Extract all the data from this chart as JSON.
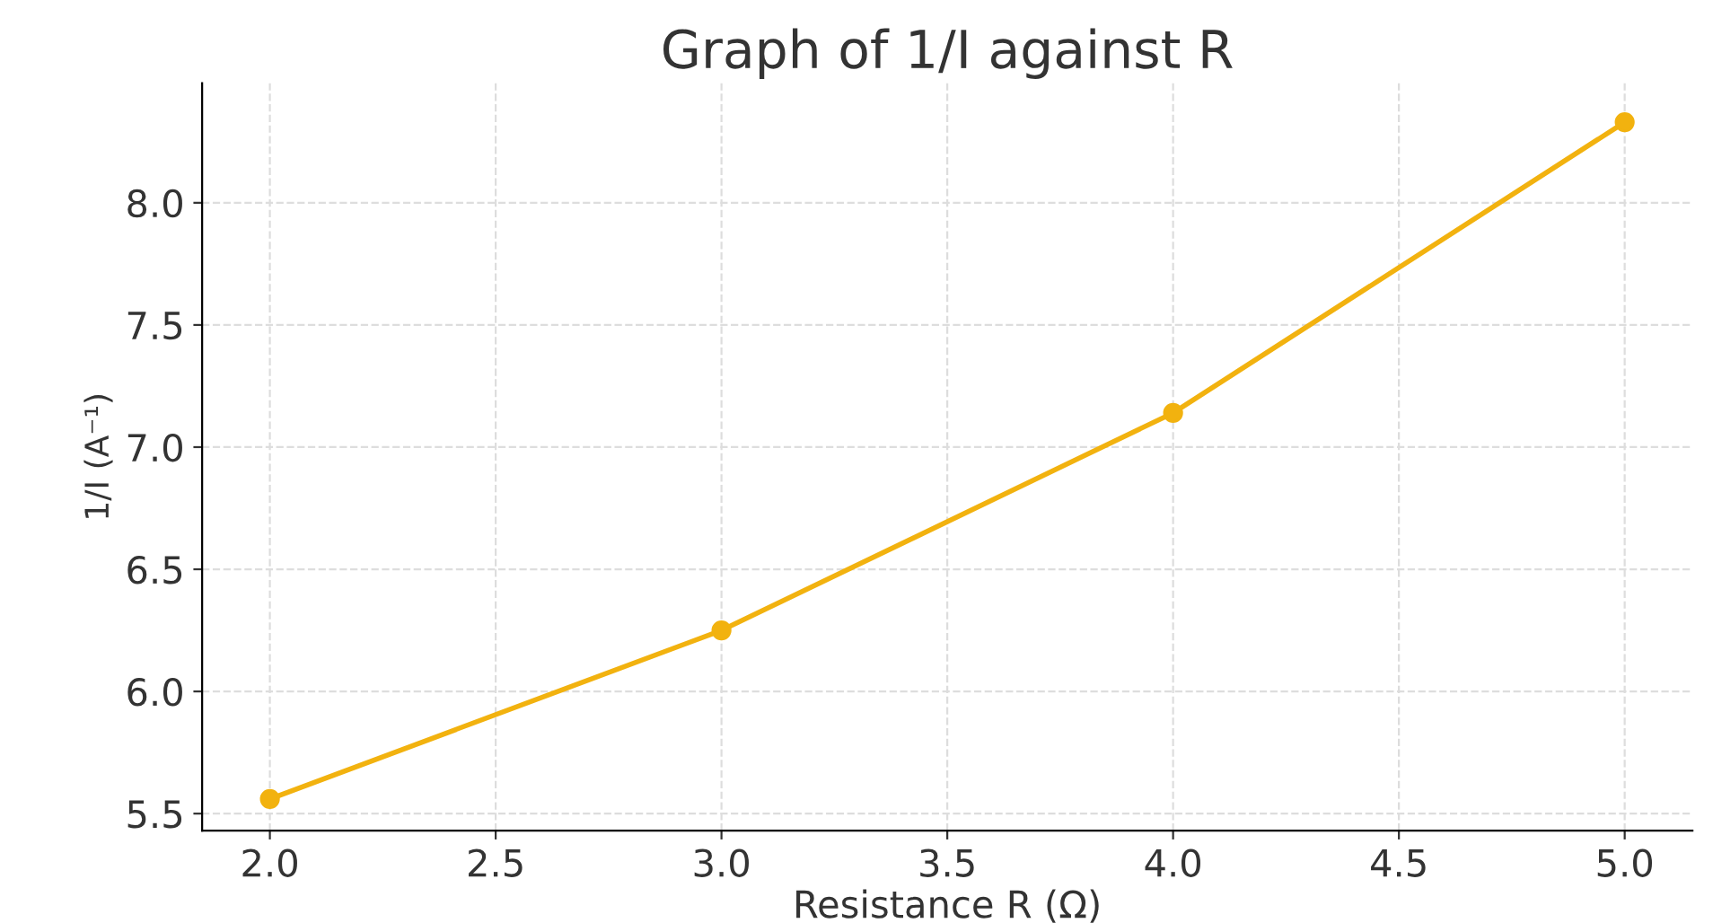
{
  "chart_data": {
    "type": "line",
    "title": "Graph of 1/I against R",
    "xlabel": "Resistance R (Ω)",
    "ylabel": "1/I (A⁻¹)",
    "x": [
      2.0,
      3.0,
      4.0,
      5.0
    ],
    "series": [
      {
        "color": "#f2b20f",
        "values": [
          5.56,
          6.25,
          7.14,
          8.33
        ]
      }
    ],
    "xlim": [
      1.85,
      5.15
    ],
    "ylim": [
      5.43,
      8.49
    ],
    "xticks": [
      {
        "value": 2.0,
        "label": "2.0"
      },
      {
        "value": 2.5,
        "label": "2.5"
      },
      {
        "value": 3.0,
        "label": "3.0"
      },
      {
        "value": 3.5,
        "label": "3.5"
      },
      {
        "value": 4.0,
        "label": "4.0"
      },
      {
        "value": 4.5,
        "label": "4.5"
      },
      {
        "value": 5.0,
        "label": "5.0"
      }
    ],
    "yticks": [
      {
        "value": 5.5,
        "label": "5.5"
      },
      {
        "value": 6.0,
        "label": "6.0"
      },
      {
        "value": 6.5,
        "label": "6.5"
      },
      {
        "value": 7.0,
        "label": "7.0"
      },
      {
        "value": 7.5,
        "label": "7.5"
      },
      {
        "value": 8.0,
        "label": "8.0"
      }
    ],
    "grid": true,
    "marker": "circle",
    "line_style": "solid"
  }
}
